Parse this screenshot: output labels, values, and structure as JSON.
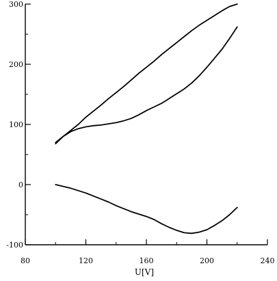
{
  "chart_data": {
    "type": "line",
    "title": "",
    "xlabel": "U[V]",
    "ylabel": "",
    "xlim": [
      80,
      240
    ],
    "ylim": [
      -100,
      300
    ],
    "x_ticks": [
      80,
      120,
      160,
      200,
      240
    ],
    "y_ticks": [
      -100,
      0,
      100,
      200,
      300
    ],
    "x_minor_step": 20,
    "y_minor_step": 50,
    "grid": false,
    "series": [
      {
        "x": [
          100,
          105,
          110,
          115,
          120,
          125,
          130,
          135,
          140,
          145,
          150,
          155,
          160,
          165,
          170,
          175,
          180,
          185,
          190,
          195,
          200,
          205,
          210,
          215,
          220
        ],
        "y": [
          70,
          80,
          90,
          100,
          112,
          122,
          132,
          143,
          153,
          163,
          174,
          185,
          195,
          205,
          216,
          226,
          236,
          246,
          256,
          265,
          273,
          281,
          289,
          296,
          300
        ]
      },
      {
        "x": [
          100,
          105,
          110,
          115,
          120,
          125,
          130,
          135,
          140,
          145,
          150,
          155,
          160,
          165,
          170,
          175,
          180,
          185,
          190,
          195,
          200,
          205,
          210,
          215,
          220
        ],
        "y": [
          68,
          80,
          88,
          93,
          96,
          98,
          99,
          101,
          103,
          106,
          110,
          116,
          123,
          129,
          135,
          143,
          151,
          159,
          169,
          181,
          195,
          210,
          225,
          243,
          262
        ]
      },
      {
        "x": [
          100,
          105,
          110,
          115,
          120,
          125,
          130,
          135,
          140,
          145,
          150,
          155,
          160,
          165,
          170,
          175,
          180,
          185,
          190,
          195,
          200,
          205,
          210,
          215,
          220
        ],
        "y": [
          0,
          -3,
          -6,
          -10,
          -14,
          -19,
          -24,
          -29,
          -35,
          -40,
          -45,
          -49,
          -53,
          -58,
          -65,
          -71,
          -76,
          -80,
          -81,
          -79,
          -75,
          -68,
          -60,
          -50,
          -38
        ]
      }
    ]
  }
}
